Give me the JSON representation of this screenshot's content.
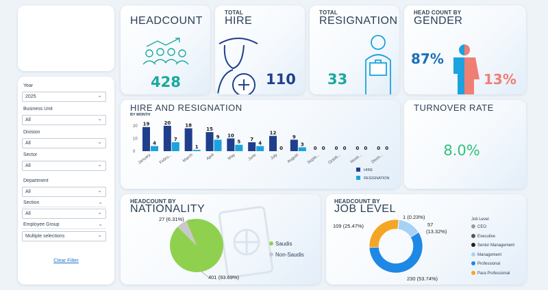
{
  "filters": {
    "year_label": "Year",
    "year_value": "2025",
    "business_unit_label": "Business Unit",
    "business_unit_value": "All",
    "division_label": "Division",
    "division_value": "All",
    "sector_label": "Sector",
    "sector_value": "All",
    "department_label": "Department",
    "department_value": "All",
    "section_label": "Section",
    "section_value": "All",
    "employee_group_label": "Employee Group",
    "employee_group_value": "Multiple selections",
    "clear_label": "Clear Filter"
  },
  "kpis": {
    "headcount_title": "HEADCOUNT",
    "headcount_value": "428",
    "hire_small": "TOTAL",
    "hire_title": "HIRE",
    "hire_value": "110",
    "resign_small": "TOTAL",
    "resign_title": "RESIGNATION",
    "resign_value": "33",
    "gender_small": "HEAD COUNT BY",
    "gender_title": "GENDER",
    "male_value": "87%",
    "female_value": "13%",
    "turnover_title": "TURNOVER RATE",
    "turnover_value": "8.0%"
  },
  "hire_resign_panel": {
    "title": "HIRE AND RESIGNATION",
    "subtitle": "BY MONTH"
  },
  "nationality_panel": {
    "small": "HEADCOUNT BY",
    "title": "NATIONALITY"
  },
  "job_level_panel": {
    "small": "HEADCOUNT BY",
    "title": "JOB LEVEL",
    "legend_title": "Job Level"
  },
  "colors": {
    "hire": "#1f3f8c",
    "resignation": "#1aa3de",
    "saudis": "#8fd14f",
    "non_saudis": "#c9c9c9",
    "accent_teal": "#1aa99d",
    "male": "#1a6fb8",
    "female": "#f07f73",
    "turnover": "#2ec27e"
  },
  "chart_data": [
    {
      "type": "bar",
      "title": "HIRE AND RESIGNATION",
      "subtitle": "BY MONTH",
      "categories": [
        "January",
        "Febru...",
        "March",
        "April",
        "May",
        "June",
        "July",
        "August",
        "Septe...",
        "Octob...",
        "Nove...",
        "Dece..."
      ],
      "series": [
        {
          "name": "HIRE",
          "values": [
            19,
            20,
            18,
            15,
            10,
            7,
            12,
            9,
            0,
            0,
            0,
            0
          ]
        },
        {
          "name": "RESIGNATION",
          "values": [
            4,
            7,
            1,
            9,
            5,
            4,
            0,
            3,
            0,
            0,
            0,
            0
          ]
        }
      ],
      "yticks": [
        0,
        10,
        20
      ],
      "ylim": [
        0,
        21
      ],
      "legend": "bottom-right"
    },
    {
      "type": "pie",
      "title": "NATIONALITY",
      "slices": [
        {
          "name": "Saudis",
          "value": 401,
          "label": "401 (93.69%)",
          "color": "#8fd14f"
        },
        {
          "name": "Non-Saudis",
          "value": 27,
          "label": "27 (6.31%)",
          "color": "#c9c9c9"
        }
      ],
      "legend": "right"
    },
    {
      "type": "pie",
      "title": "JOB LEVEL",
      "donut": true,
      "slices": [
        {
          "name": "CEO",
          "value": 0,
          "label": "",
          "color": "#9b9b9b"
        },
        {
          "name": "Executive",
          "value": 1,
          "label": "1 (0.23%)",
          "color": "#555555"
        },
        {
          "name": "Senior Management",
          "value": 0,
          "label": "",
          "color": "#222222"
        },
        {
          "name": "Management",
          "value": 57,
          "label": "57 (13.32%)",
          "color": "#a8d2f5"
        },
        {
          "name": "Professional",
          "value": 230,
          "label": "230 (53.74%)",
          "color": "#1e88e5"
        },
        {
          "name": "Para Professional",
          "value": 109,
          "label": "109 (25.47%)",
          "color": "#f5a524"
        }
      ],
      "legend": "right"
    }
  ]
}
